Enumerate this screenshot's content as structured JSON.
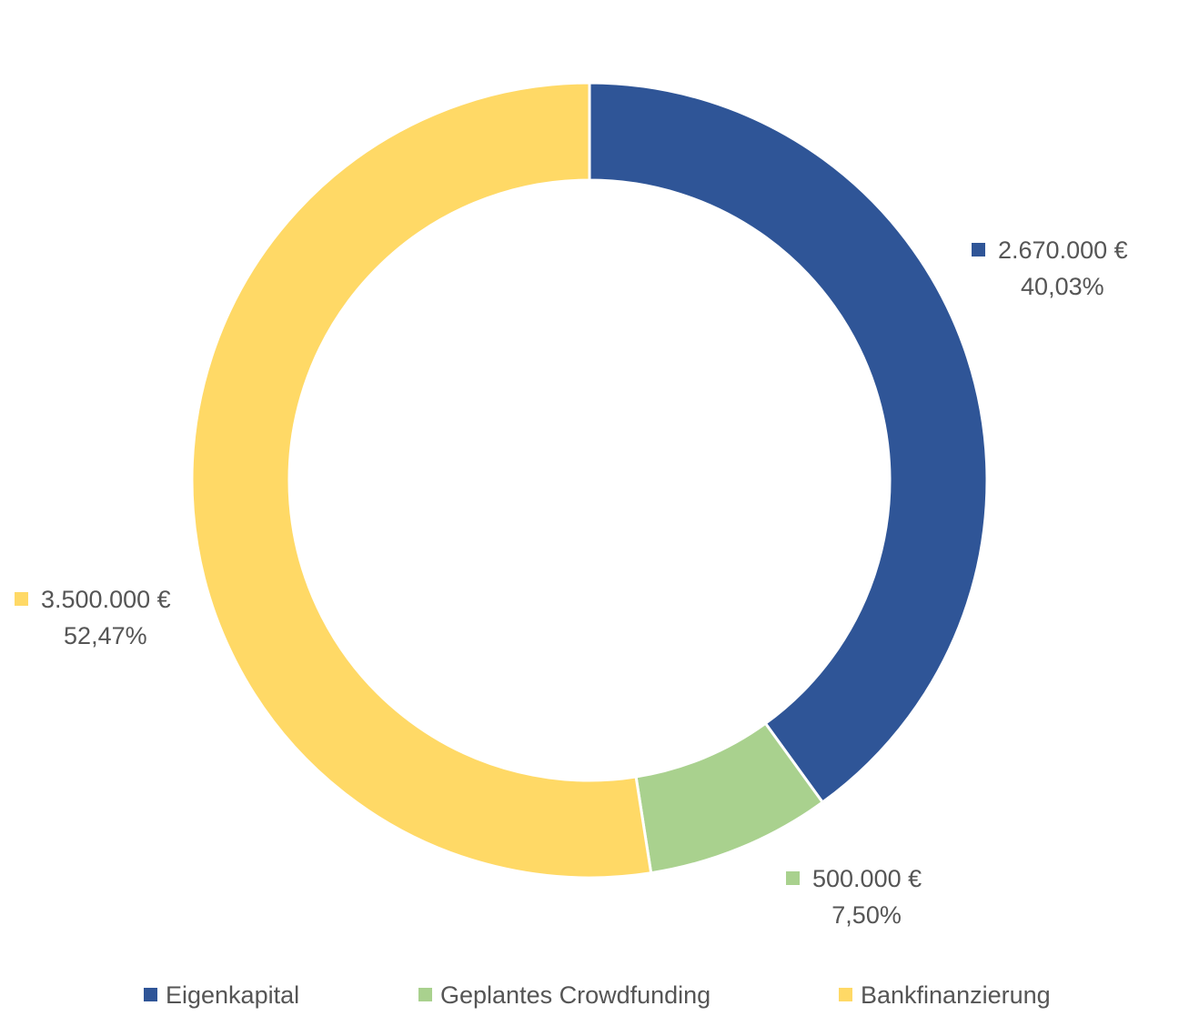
{
  "chart_data": {
    "type": "pie",
    "donut": true,
    "legend_position": "bottom",
    "series": [
      {
        "name": "Eigenkapital",
        "value": 2670000,
        "value_label": "2.670.000 €",
        "percent_label": "40,03%",
        "color": "#2f5597"
      },
      {
        "name": "Geplantes Crowdfunding",
        "value": 500000,
        "value_label": "500.000 €",
        "percent_label": "7,50%",
        "color": "#a9d18e"
      },
      {
        "name": "Bankfinanzierung",
        "value": 3500000,
        "value_label": "3.500.000 €",
        "percent_label": "52,47%",
        "color": "#ffd966"
      }
    ]
  }
}
